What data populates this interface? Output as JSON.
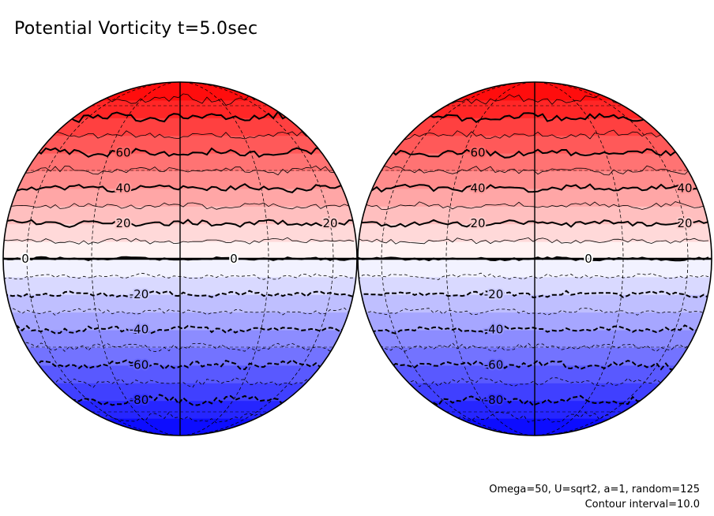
{
  "chart_data": {
    "type": "heatmap",
    "title": "Potential Vorticity t=5.0sec",
    "projection": "orthographic",
    "variable": "Potential Vorticity",
    "colorscale": {
      "negative": "#0000ff",
      "zero": "#ffffff",
      "positive": "#ff0000"
    },
    "contour_interval": 10,
    "value_range": [
      -100,
      100
    ],
    "panels": [
      {
        "name": "left hemisphere",
        "contour_labels": [
          "60",
          "40",
          "20",
          "20",
          "0",
          "0",
          "-20",
          "-40",
          "-60",
          "-80"
        ]
      },
      {
        "name": "right hemisphere",
        "contour_labels": [
          "60",
          "40",
          "40",
          "20",
          "20",
          "0",
          "-20",
          "-40",
          "-60",
          "-80"
        ]
      }
    ]
  },
  "annotations": {
    "parameters": "Omega=50, U=sqrt2, a=1, random=125",
    "contour_interval": "Contour interval=10.0"
  }
}
